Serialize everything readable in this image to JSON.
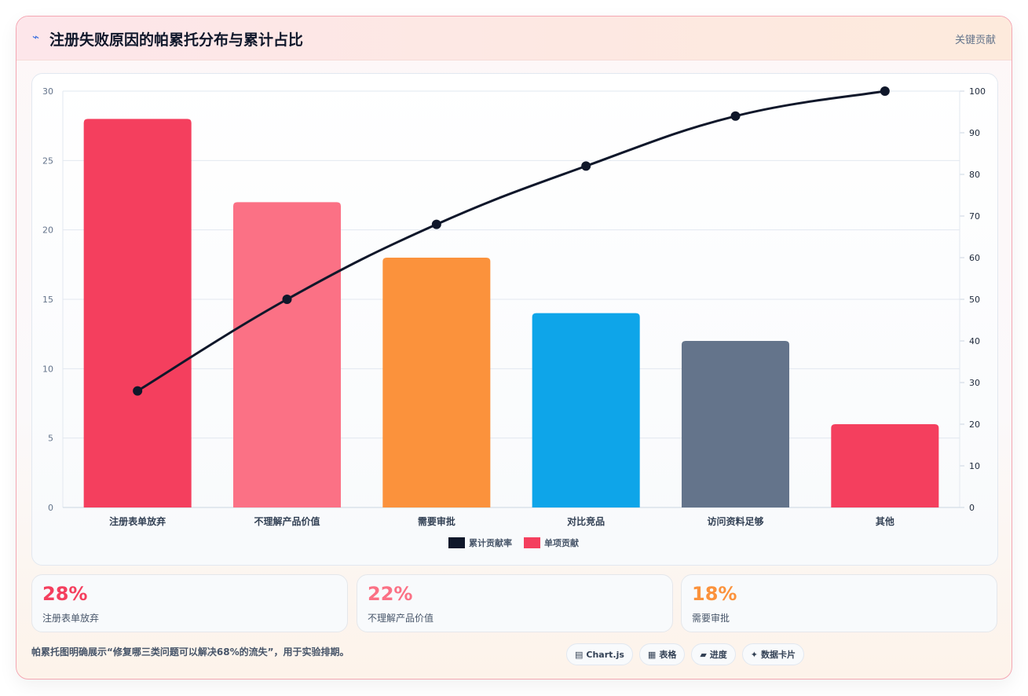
{
  "header": {
    "icon": "bolt-icon",
    "title": "注册失败原因的帕累托分布与累计占比",
    "tag": "关键贡献"
  },
  "chart_data": {
    "type": "bar",
    "categories": [
      "注册表单放弃",
      "不理解产品价值",
      "需要审批",
      "对比竞品",
      "访问资料足够",
      "其他"
    ],
    "series": [
      {
        "name": "单项贡献",
        "type": "bar",
        "axis": "left",
        "values": [
          28,
          22,
          18,
          14,
          12,
          6
        ],
        "colors": [
          "#f43f5e",
          "#fb7185",
          "#fb923c",
          "#0ea5e9",
          "#64748b",
          "#f43f5e"
        ]
      },
      {
        "name": "累计贡献率",
        "type": "line",
        "axis": "right",
        "values": [
          28,
          50,
          68,
          82,
          94,
          100
        ],
        "color": "#0f172a"
      }
    ],
    "y_left": {
      "min": 0,
      "max": 30,
      "ticks": [
        0,
        5,
        10,
        15,
        20,
        25,
        30
      ]
    },
    "y_right": {
      "min": 0,
      "max": 100,
      "ticks": [
        0,
        10,
        20,
        30,
        40,
        50,
        60,
        70,
        80,
        90,
        100
      ]
    },
    "legend": {
      "position": "bottom",
      "items": [
        {
          "label": "累计贡献率",
          "color": "#0f172a"
        },
        {
          "label": "单项贡献",
          "color": "#f43f5e"
        }
      ]
    },
    "grid": true
  },
  "stats": [
    {
      "value": "28%",
      "label": "注册表单放弃",
      "color": "#f43f5e"
    },
    {
      "value": "22%",
      "label": "不理解产品价值",
      "color": "#fb7185"
    },
    {
      "value": "18%",
      "label": "需要审批",
      "color": "#fb923c"
    }
  ],
  "footer": {
    "note": "帕累托图明确展示“修复哪三类问题可以解决68%的流失”，用于实验排期。",
    "chips": [
      {
        "icon": "▤",
        "label": "Chart.js"
      },
      {
        "icon": "▦",
        "label": "表格"
      },
      {
        "icon": "▰",
        "label": "进度"
      },
      {
        "icon": "✦",
        "label": "数据卡片"
      }
    ]
  }
}
